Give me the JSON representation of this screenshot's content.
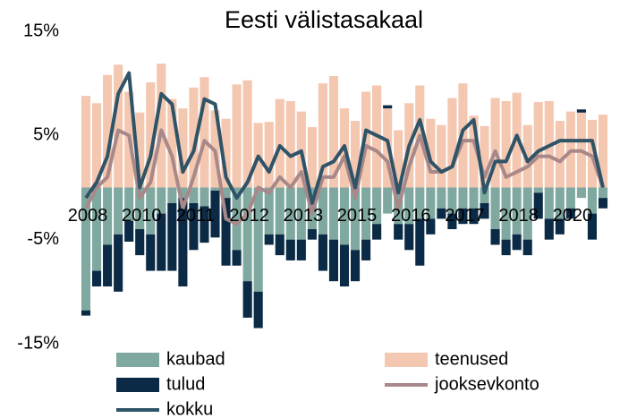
{
  "chart_data": {
    "type": "bar",
    "title": "Eesti välistasakaal",
    "categories": [
      "2008",
      null,
      null,
      null,
      null,
      "2010",
      null,
      null,
      null,
      null,
      "2011",
      null,
      null,
      null,
      null,
      "2012",
      null,
      null,
      null,
      null,
      "2013",
      null,
      null,
      null,
      null,
      "2015",
      null,
      null,
      null,
      null,
      "2016",
      null,
      null,
      null,
      null,
      "2017",
      null,
      null,
      null,
      null,
      "2018",
      null,
      null,
      null,
      null,
      "2020",
      null,
      null,
      null
    ],
    "ylim": [
      -15,
      15
    ],
    "yticks": [
      {
        "value": 15,
        "label": "15%"
      },
      {
        "value": 5,
        "label": "5%"
      },
      {
        "value": -5,
        "label": "-5%"
      },
      {
        "value": -15,
        "label": "-15%"
      }
    ],
    "series": [
      {
        "name": "kaubad",
        "type": "bar",
        "color": "#7fa9a0",
        "values": [
          -11.8,
          -8,
          -5.5,
          -4.5,
          -3.2,
          -4,
          -4.5,
          -2.5,
          -1.5,
          -1,
          -1.5,
          -1.8,
          -0.3,
          -1,
          -6,
          -9,
          -10,
          -4.5,
          -4.5,
          -5,
          -5,
          -4,
          -4.5,
          -5,
          -5.5,
          -6,
          -5,
          -3.5,
          -2.5,
          -3.5,
          -3.5,
          -3,
          -3,
          -2,
          -2.5,
          -2,
          -2,
          -1.5,
          -4,
          -5,
          -4.5,
          -5,
          -0.5,
          -3,
          -3,
          -2,
          -1,
          -2.5,
          -1
        ]
      },
      {
        "name": "teenused",
        "type": "bar",
        "color": "#f4c7b0",
        "values": [
          8.8,
          8.1,
          10.8,
          11.8,
          9.2,
          7.2,
          10.1,
          11.9,
          8.5,
          7.6,
          9.6,
          10.6,
          7.4,
          6.6,
          9.9,
          10.3,
          6.2,
          6.3,
          8.5,
          8.3,
          7.3,
          5.8,
          10.0,
          10.7,
          7.6,
          6.4,
          9.2,
          9.8,
          7.6,
          5.5,
          8.1,
          9.8,
          6.6,
          6.0,
          8.6,
          10.0,
          6.9,
          5.9,
          8.6,
          8.3,
          9.1,
          6.0,
          8.2,
          8.3,
          6.4,
          7.3,
          7.2,
          6.5,
          7.0
        ]
      },
      {
        "name": "tulud",
        "type": "bar",
        "color": "#0b2a45",
        "values": [
          -0.5,
          -1.5,
          -4,
          -5.5,
          -2,
          -2.5,
          -3.5,
          -5.5,
          -6.5,
          -8.5,
          -4.5,
          -3.5,
          -4.5,
          -6.5,
          -1.5,
          -3.5,
          -3.5,
          -1,
          -2,
          -2,
          -2,
          -1,
          -3.5,
          -4,
          -4,
          -3,
          -2,
          -1.5,
          0.3,
          -1.5,
          -2.5,
          -4.5,
          -1.5,
          -1,
          -1.5,
          -1.5,
          -1.5,
          -1.5,
          -1.5,
          -1.5,
          -1.5,
          -1.5,
          -2.5,
          -2,
          -1.5,
          -1,
          0.3,
          -2.5,
          -1
        ]
      },
      {
        "name": "jooksevkonto",
        "type": "line",
        "color": "#a88888",
        "values": [
          -2,
          0,
          1,
          5.5,
          5,
          -1,
          0.5,
          5.5,
          3,
          -2,
          1,
          4.5,
          3.5,
          -3,
          -3.5,
          -2.5,
          0,
          -0.5,
          1,
          0,
          1.5,
          -2.5,
          1,
          1,
          3,
          -1,
          4,
          3.5,
          2.5,
          -2,
          2,
          5,
          1.5,
          1.5,
          2,
          4.5,
          4.5,
          1,
          3.5,
          1,
          1.5,
          2,
          3,
          3,
          2.5,
          3.5,
          3.5,
          3,
          0
        ]
      },
      {
        "name": "kokku",
        "type": "line",
        "color": "#2f5468",
        "values": [
          -1,
          0.5,
          3,
          9,
          11,
          0,
          3,
          9,
          8,
          1.5,
          3.5,
          8.5,
          8,
          1,
          -1,
          0.5,
          3,
          1.5,
          4,
          3,
          3.5,
          -1.5,
          2,
          2.5,
          4,
          0,
          5.5,
          5,
          4.5,
          -0.5,
          4,
          6.5,
          2.5,
          1.5,
          2,
          5.5,
          6.5,
          -0.5,
          2.5,
          2.5,
          5,
          2.5,
          3.5,
          4,
          4.5,
          4.5,
          4.5,
          4.5,
          0
        ]
      }
    ]
  }
}
